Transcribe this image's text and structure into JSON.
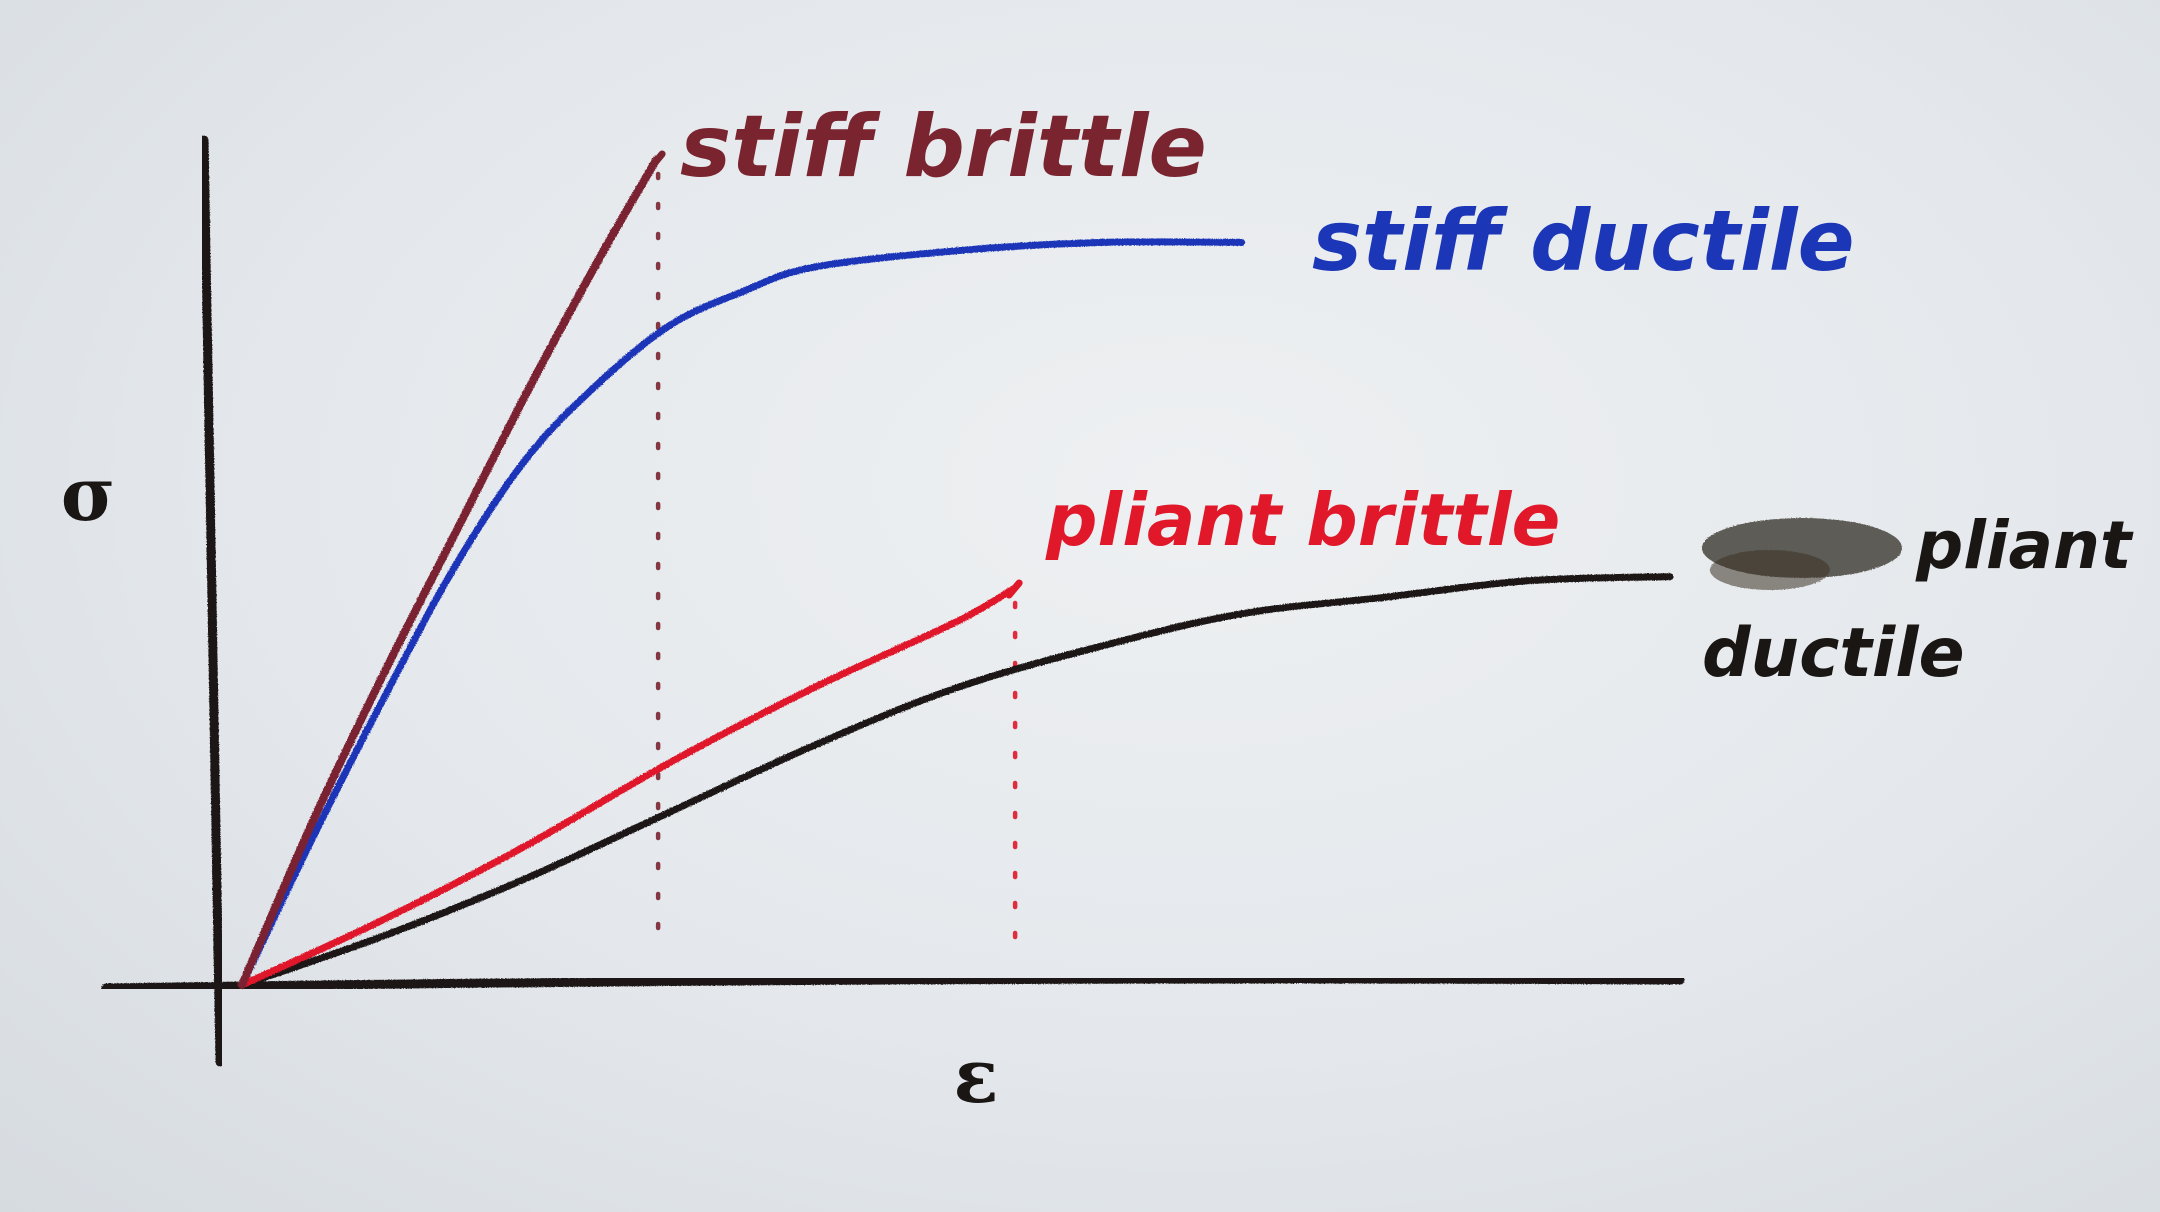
{
  "chart_data": {
    "type": "line",
    "title": "",
    "xlabel": "ε",
    "ylabel": "σ",
    "xlim": [
      0,
      10
    ],
    "ylim": [
      0,
      10
    ],
    "grid": false,
    "legend": "none",
    "series": [
      {
        "name": "stiff brittle",
        "color": "#7a2430",
        "end": "fracture",
        "x": [
          0,
          0.5,
          1.0,
          1.5,
          2.0,
          2.5,
          2.9
        ],
        "y": [
          0,
          2.0,
          3.8,
          5.5,
          7.2,
          8.8,
          10.0
        ]
      },
      {
        "name": "stiff ductile",
        "color": "#1c36b8",
        "end": "continues",
        "x": [
          0,
          0.5,
          1.0,
          1.5,
          2.0,
          2.5,
          3.0,
          3.5,
          4.0,
          5.0,
          6.0,
          7.0
        ],
        "y": [
          0,
          1.8,
          3.5,
          5.1,
          6.4,
          7.3,
          8.0,
          8.4,
          8.7,
          8.9,
          9.0,
          9.0
        ]
      },
      {
        "name": "pliant brittle",
        "color": "#e0182a",
        "end": "fracture",
        "x": [
          0,
          1.0,
          2.0,
          3.0,
          4.0,
          5.0,
          5.4
        ],
        "y": [
          0,
          0.8,
          1.7,
          2.7,
          3.6,
          4.4,
          4.8
        ]
      },
      {
        "name": "pliant ductile",
        "color": "#1a1614",
        "end": "continues",
        "x": [
          0,
          1.0,
          2.0,
          3.0,
          4.0,
          5.0,
          6.0,
          7.0,
          8.0,
          9.0,
          10.0
        ],
        "y": [
          0,
          0.6,
          1.3,
          2.1,
          2.9,
          3.6,
          4.1,
          4.5,
          4.7,
          4.9,
          4.95
        ]
      }
    ],
    "annotations": [
      {
        "text": "stiff brittle",
        "color": "#7a2430",
        "series": "stiff brittle"
      },
      {
        "text": "stiff ductile",
        "color": "#1c36b8",
        "series": "stiff ductile"
      },
      {
        "text": "pliant brittle",
        "color": "#e0182a",
        "series": "pliant brittle"
      },
      {
        "text": "pliant",
        "color": "#1a1614",
        "series": "pliant ductile"
      },
      {
        "text": "ductile",
        "color": "#1a1614",
        "series": "pliant ductile"
      }
    ]
  }
}
